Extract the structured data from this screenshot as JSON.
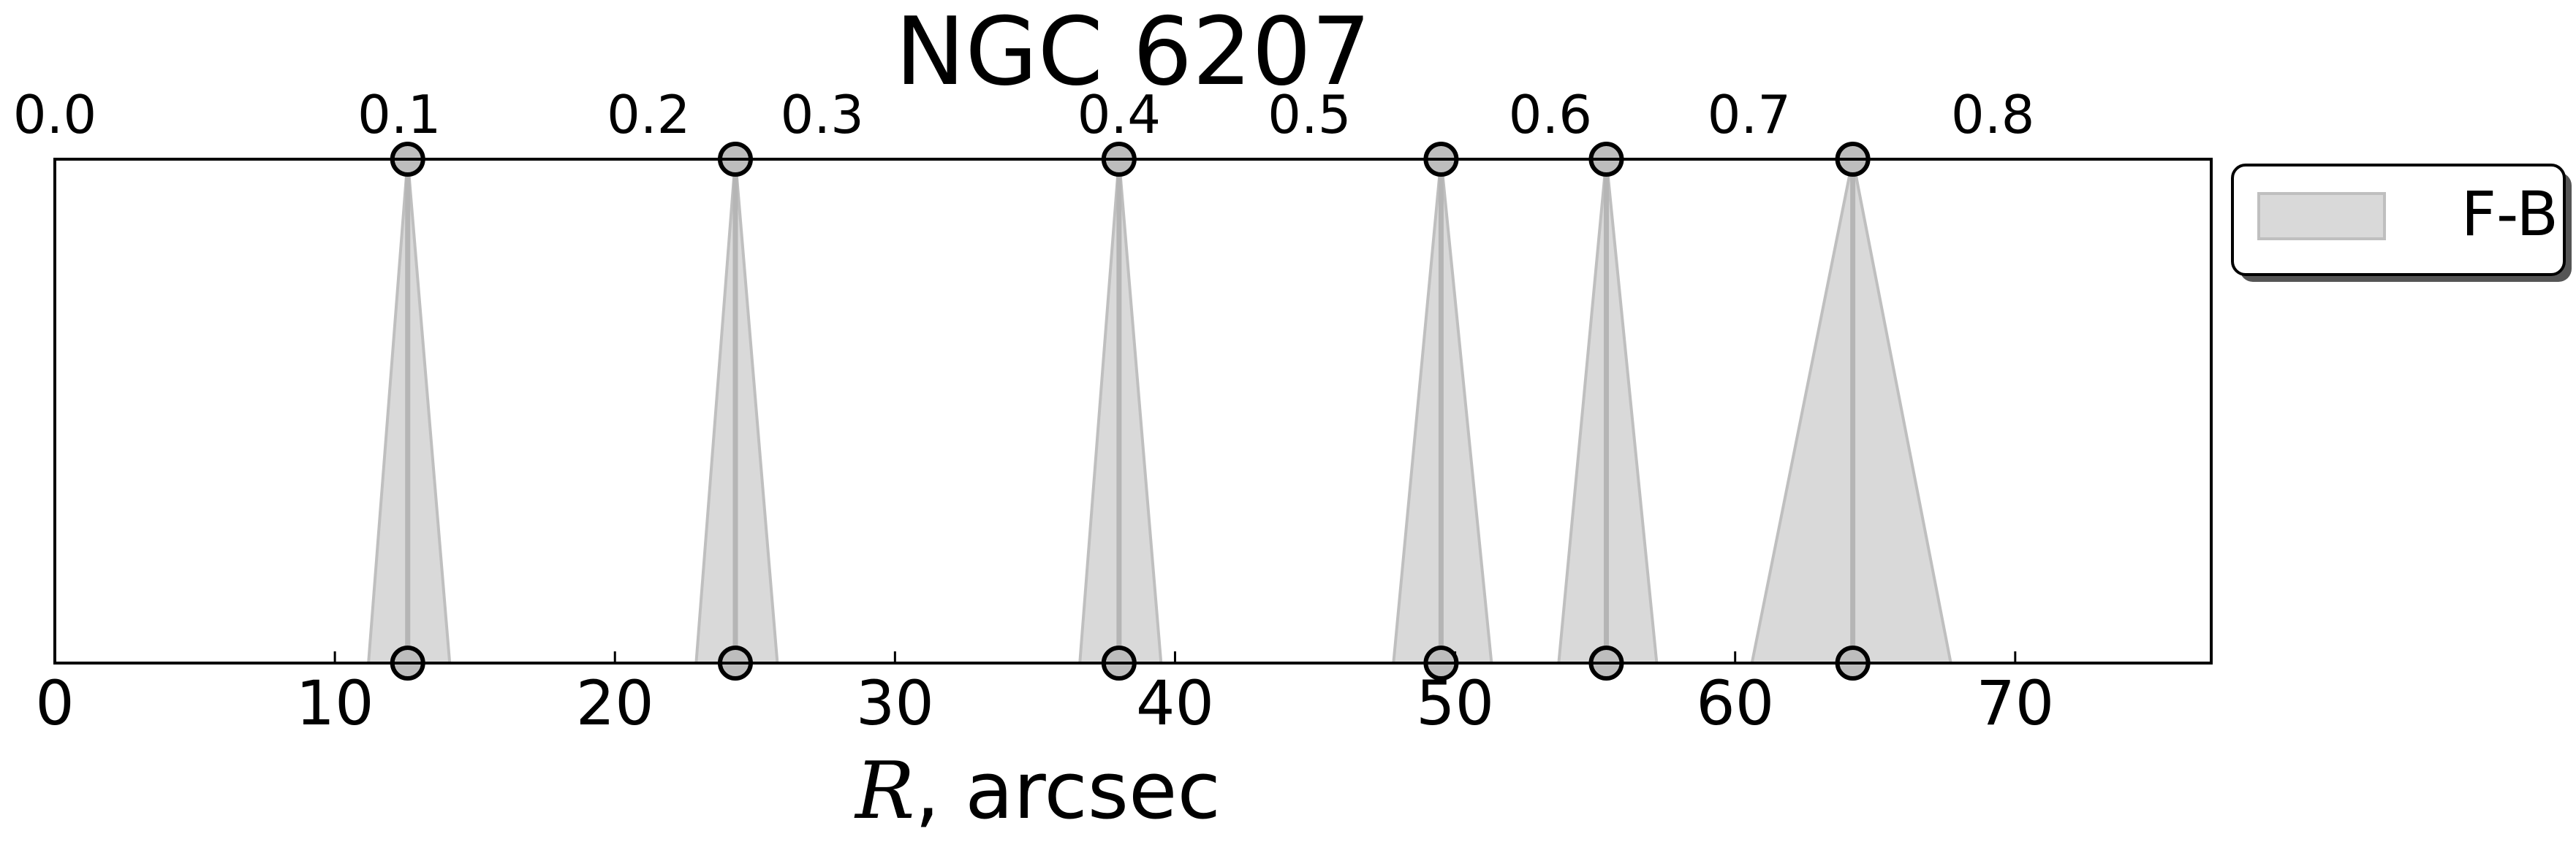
{
  "chart_data": {
    "type": "area",
    "title": "NGC 6207",
    "xlabel_var": "R",
    "xlabel_rest": ", arcsec",
    "xlim": [
      0,
      77
    ],
    "xticks": [
      0,
      10,
      20,
      30,
      40,
      50,
      60,
      70
    ],
    "xtick_labels": [
      "0",
      "10",
      "20",
      "30",
      "40",
      "50",
      "60",
      "70"
    ],
    "top_axis": {
      "ticks": [
        0.0,
        0.1,
        0.2,
        0.3,
        0.4,
        0.5,
        0.6,
        0.7,
        0.8
      ],
      "tick_labels": [
        "0.0",
        "0.1",
        "0.2",
        "0.3",
        "0.4",
        "0.5",
        "0.6",
        "0.7",
        "0.8"
      ],
      "scale": "reciprocal",
      "bottom_value_at_tick": [
        0,
        12.3,
        21.2,
        27.4,
        38.0,
        44.8,
        53.4,
        60.5,
        69.2
      ]
    },
    "grid": false,
    "legend_position": "outside-top-right",
    "series": [
      {
        "name": "F-B",
        "color": "#d9d9d9",
        "edge_color": "#bfbfbf",
        "features": [
          {
            "center": 12.6,
            "bottom_left": 11.2,
            "bottom_right": 14.1
          },
          {
            "center": 24.3,
            "bottom_left": 22.9,
            "bottom_right": 25.8
          },
          {
            "center": 38.0,
            "bottom_left": 36.6,
            "bottom_right": 39.5
          },
          {
            "center": 49.5,
            "bottom_left": 47.8,
            "bottom_right": 51.3
          },
          {
            "center": 55.4,
            "bottom_left": 53.7,
            "bottom_right": 57.2
          },
          {
            "center": 64.2,
            "bottom_left": 60.6,
            "bottom_right": 67.7
          }
        ]
      }
    ]
  }
}
